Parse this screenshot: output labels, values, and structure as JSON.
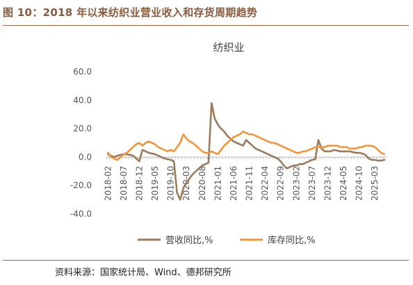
{
  "figure": {
    "caption": "图 10：2018 年以来纺织业营业收入和存货周期趋势",
    "source": "资料来源：国家统计局、Wind、德邦研究所"
  },
  "chart_data": {
    "type": "line",
    "title": "纺织业",
    "xlabel": "",
    "ylabel": "",
    "ylim": [
      -40,
      60
    ],
    "yticks": [
      "60.0",
      "40.0",
      "20.0",
      "0.0",
      "-20.0",
      "-40.0"
    ],
    "x": [
      "2018-02",
      "2018-03",
      "2018-04",
      "2018-05",
      "2018-06",
      "2018-07",
      "2018-08",
      "2018-09",
      "2018-10",
      "2018-11",
      "2018-12",
      "2019-01",
      "2019-02",
      "2019-03",
      "2019-04",
      "2019-05",
      "2019-06",
      "2019-07",
      "2019-08",
      "2019-09",
      "2019-10",
      "2019-11",
      "2019-12",
      "2020-01",
      "2020-02",
      "2020-03",
      "2020-04",
      "2020-05",
      "2020-06",
      "2020-07",
      "2020-08",
      "2020-09",
      "2020-10",
      "2020-11",
      "2020-12",
      "2021-01",
      "2021-02",
      "2021-03",
      "2021-04",
      "2021-05",
      "2021-06",
      "2021-07",
      "2021-08",
      "2021-09",
      "2021-10",
      "2021-11",
      "2021-12",
      "2022-01",
      "2022-02",
      "2022-03",
      "2022-04",
      "2022-05",
      "2022-06",
      "2022-07",
      "2022-08",
      "2022-09",
      "2022-10",
      "2022-11",
      "2022-12",
      "2023-01",
      "2023-02",
      "2023-03",
      "2023-04",
      "2023-05",
      "2023-06",
      "2023-07",
      "2023-08",
      "2023-09",
      "2023-10",
      "2023-11",
      "2023-12",
      "2024-01",
      "2024-02",
      "2024-03",
      "2024-04",
      "2024-05",
      "2024-06",
      "2024-07",
      "2024-08",
      "2024-09",
      "2024-10",
      "2024-11",
      "2024-12",
      "2025-01",
      "2025-02",
      "2025-03",
      "2025-04",
      "2025-05",
      "2025-06"
    ],
    "xticks": [
      "2018-02",
      "2018-07",
      "2018-12",
      "2019-05",
      "2019-10",
      "2020-03",
      "2020-08",
      "2021-01",
      "2021-06",
      "2021-11",
      "2022-04",
      "2022-09",
      "2023-02",
      "2023-07",
      "2023-12",
      "2024-05",
      "2024-10",
      "2025-03"
    ],
    "series": [
      {
        "name": "营收同比,%",
        "color": "#9c7b5c",
        "values": [
          2,
          1,
          0,
          1,
          1.5,
          2,
          2,
          1.5,
          1,
          -1,
          -3,
          5,
          4,
          3,
          2.5,
          2,
          1,
          0,
          -1,
          -1.5,
          -2,
          -3,
          -25,
          -30,
          -22,
          -18,
          -15,
          -12,
          -10,
          -8,
          -6,
          -5,
          -4,
          38,
          27,
          23,
          20,
          18,
          15,
          13,
          11,
          10,
          9,
          8,
          12,
          10,
          8,
          6,
          5,
          4,
          3,
          2,
          1,
          0,
          -1,
          -3,
          -6,
          -8,
          -7,
          -6,
          -6,
          -5,
          -5,
          -4,
          -3,
          -2,
          -1.5,
          12,
          6,
          4,
          4,
          4,
          5,
          4.5,
          4,
          4,
          4,
          4,
          3.5,
          3,
          3,
          2.5,
          1.5,
          -1,
          -2,
          -2,
          -2.5,
          -2.5,
          -2
        ]
      },
      {
        "name": "库存同比,%",
        "color": "#f0963a",
        "values": [
          3,
          0,
          -1,
          -2,
          0,
          2,
          3,
          5,
          7,
          9,
          10,
          8,
          10,
          11,
          10,
          9,
          7,
          6,
          5,
          4,
          5,
          4,
          7,
          10,
          16,
          13,
          11,
          10,
          8,
          6,
          4,
          3,
          3,
          4,
          3,
          2,
          5,
          8,
          10,
          12,
          14,
          15,
          16,
          18,
          17,
          16,
          16,
          15,
          14,
          13,
          12,
          11,
          10,
          10,
          9,
          8,
          7,
          6,
          5,
          4,
          3,
          3,
          4,
          4,
          5,
          6,
          7,
          7,
          7,
          7,
          8,
          8,
          8,
          8,
          7,
          7,
          7,
          6,
          6,
          6,
          7,
          7,
          8,
          8,
          8,
          7,
          5,
          3,
          2
        ]
      }
    ],
    "legend": "bottom"
  }
}
